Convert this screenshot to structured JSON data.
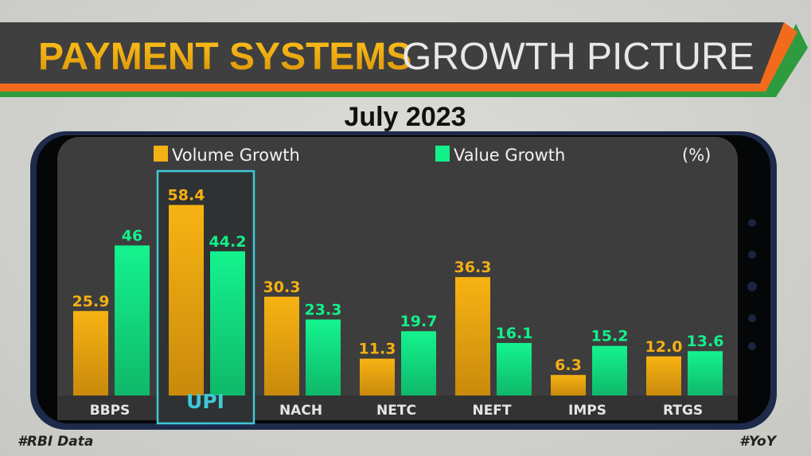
{
  "header": {
    "title_bold": "PAYMENT SYSTEMS",
    "title_light": "GROWTH PICTURE"
  },
  "footer": {
    "left_tag": "#RBI Data",
    "right_tag": "#YoY"
  },
  "colors": {
    "volume": "#f5b014",
    "value": "#12f08a",
    "highlight": "#3ec8d8",
    "banner": "#3f3f3f",
    "orange": "#f26b1d",
    "green": "#2e9b3e"
  },
  "chart_data": {
    "type": "bar",
    "title": "July 2023",
    "unit_label": "(%)",
    "categories": [
      "BBPS",
      "UPI",
      "NACH",
      "NETC",
      "NEFT",
      "IMPS",
      "RTGS"
    ],
    "highlighted_category": "UPI",
    "series": [
      {
        "name": "Volume Growth",
        "values": [
          25.9,
          58.4,
          30.3,
          11.3,
          36.3,
          6.3,
          12.0
        ],
        "labels": [
          "25.9",
          "58.4",
          "30.3",
          "11.3",
          "36.3",
          "6.3",
          "12.0"
        ]
      },
      {
        "name": "Value Growth",
        "values": [
          46,
          44.2,
          23.3,
          19.7,
          16.1,
          15.2,
          13.6
        ],
        "labels": [
          "46",
          "44.2",
          "23.3",
          "19.7",
          "16.1",
          "15.2",
          "13.6"
        ]
      }
    ],
    "legend": "top",
    "grid": false
  }
}
